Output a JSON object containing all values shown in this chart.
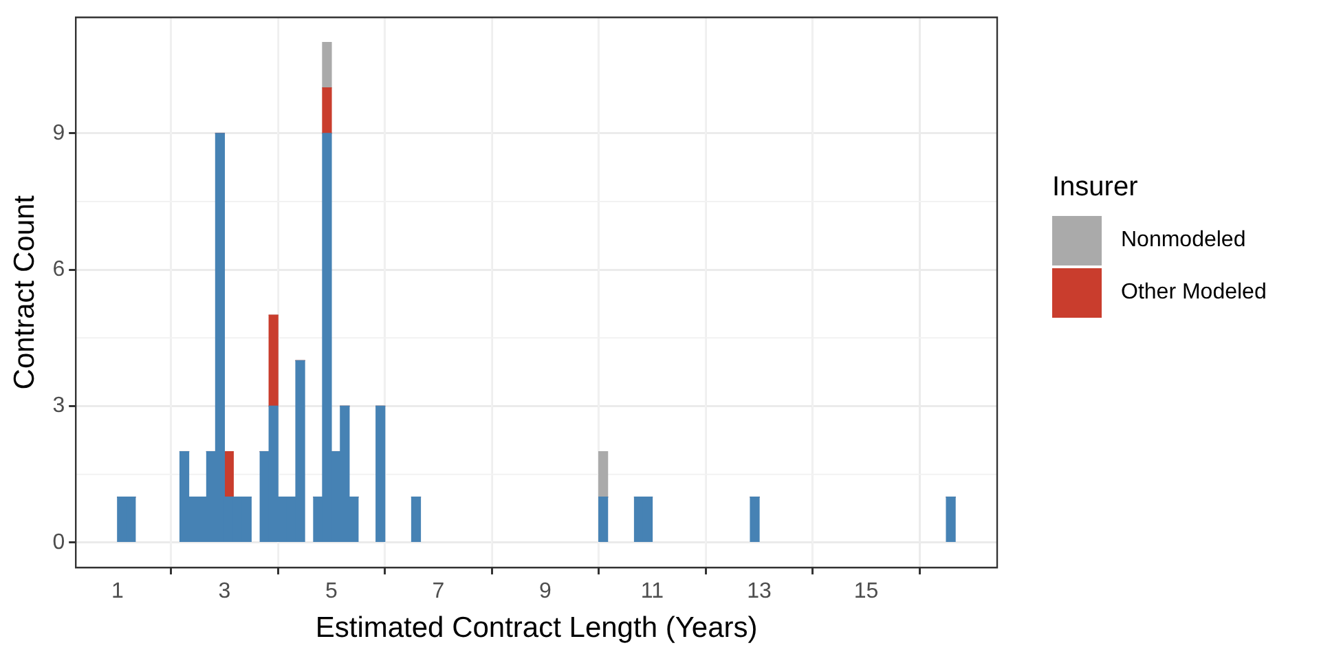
{
  "chart_data": {
    "type": "bar",
    "xlabel": "Estimated Contract Length (Years)",
    "ylabel": "Contract Count",
    "legend_title": "Insurer",
    "legend": "right",
    "grid": true,
    "stacked": true,
    "x": [
      1.083,
      1.25,
      2.25,
      2.417,
      2.583,
      2.75,
      2.917,
      3.083,
      3.25,
      3.417,
      3.75,
      3.917,
      4.083,
      4.25,
      4.417,
      4.75,
      4.917,
      5.083,
      5.25,
      5.417,
      5.917,
      6.583,
      10.083,
      10.75,
      10.917,
      12.917,
      16.583
    ],
    "series": [
      {
        "color": "#4682b4",
        "values": [
          1,
          1,
          2,
          1,
          1,
          2,
          9,
          1,
          1,
          1,
          2,
          3,
          1,
          1,
          4,
          1,
          9,
          2,
          3,
          1,
          3,
          1,
          1,
          1,
          1,
          1,
          1
        ]
      },
      {
        "name": "Other Modeled",
        "color": "#c93d2d",
        "values": [
          0,
          0,
          0,
          0,
          0,
          0,
          0,
          1,
          0,
          0,
          0,
          2,
          0,
          0,
          0,
          0,
          1,
          0,
          0,
          0,
          0,
          0,
          0,
          0,
          0,
          0,
          0
        ]
      },
      {
        "name": "Nonmodeled",
        "color": "#aaaaaa",
        "values": [
          0,
          0,
          0,
          0,
          0,
          0,
          0,
          0,
          0,
          0,
          0,
          0,
          0,
          0,
          0,
          0,
          1,
          0,
          0,
          0,
          0,
          0,
          1,
          0,
          0,
          0,
          0
        ]
      }
    ],
    "xlim": [
      0.22,
      17.45
    ],
    "xticks": [
      1,
      3,
      5,
      7,
      9,
      11,
      13,
      15
    ],
    "ylim": [
      -0.55,
      11.55
    ],
    "yticks": [
      0,
      3,
      6,
      9
    ]
  }
}
